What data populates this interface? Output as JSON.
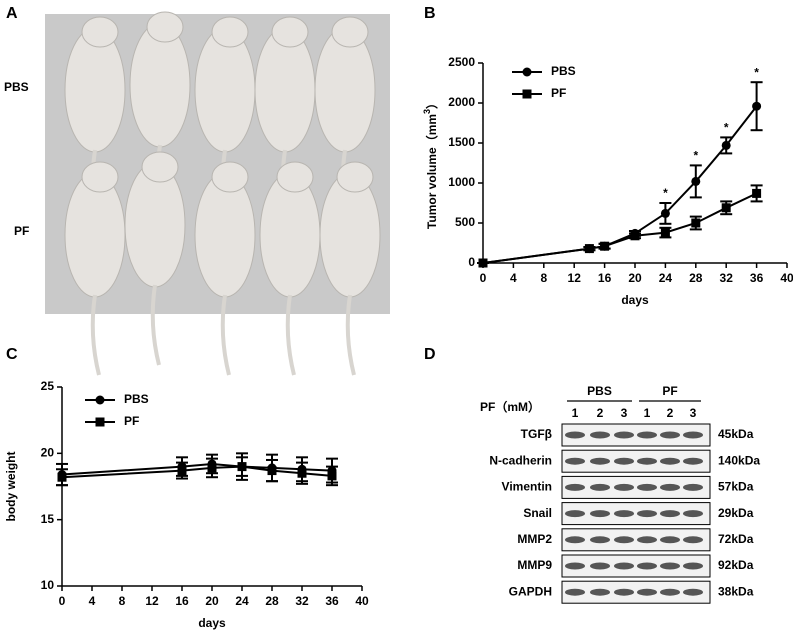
{
  "panel_labels": [
    "A",
    "B",
    "C",
    "D"
  ],
  "photo": {
    "row_labels": [
      "PBS",
      "PF"
    ]
  },
  "chart_data": [
    {
      "type": "line",
      "xlabel": "days",
      "ylabel": "Tumor volume（mm",
      "ylabel_sup": "3",
      "ylabel_end": "）",
      "x": [
        0,
        14,
        16,
        20,
        24,
        28,
        32,
        36
      ],
      "series": [
        {
          "name": "PBS",
          "color": "#000000",
          "marker": "circle",
          "values": [
            0,
            180,
            210,
            370,
            620,
            1020,
            1470,
            1960
          ],
          "errors": [
            0,
            20,
            30,
            30,
            130,
            200,
            100,
            300
          ]
        },
        {
          "name": "PF",
          "color": "#000000",
          "marker": "square",
          "values": [
            0,
            180,
            210,
            340,
            380,
            500,
            690,
            870
          ],
          "errors": [
            0,
            20,
            30,
            30,
            60,
            80,
            80,
            100
          ]
        }
      ],
      "xlim": [
        0,
        40
      ],
      "xticks": [
        0,
        4,
        8,
        12,
        16,
        20,
        24,
        28,
        32,
        36,
        40
      ],
      "ylim": [
        0,
        2500
      ],
      "yticks": [
        0,
        500,
        1000,
        1500,
        2000,
        2500
      ],
      "legend": "upper left",
      "annotations": [
        {
          "x": 24,
          "text": "*"
        },
        {
          "x": 28,
          "text": "*"
        },
        {
          "x": 32,
          "text": "*"
        },
        {
          "x": 36,
          "text": "*"
        }
      ]
    },
    {
      "type": "line",
      "xlabel": "days",
      "ylabel": "body weight",
      "x": [
        0,
        16,
        20,
        24,
        28,
        32,
        36
      ],
      "series": [
        {
          "name": "PBS",
          "color": "#000000",
          "marker": "circle",
          "values": [
            18.4,
            19.0,
            19.2,
            19.0,
            18.9,
            18.8,
            18.7
          ],
          "errors": [
            0.8,
            0.7,
            0.7,
            1.0,
            1.0,
            0.9,
            0.9
          ]
        },
        {
          "name": "PF",
          "color": "#000000",
          "marker": "square",
          "values": [
            18.2,
            18.7,
            18.9,
            19.0,
            18.7,
            18.5,
            18.3
          ],
          "errors": [
            0.6,
            0.6,
            0.7,
            0.7,
            0.8,
            0.8,
            0.7
          ]
        }
      ],
      "xlim": [
        0,
        40
      ],
      "xticks": [
        0,
        4,
        8,
        12,
        16,
        20,
        24,
        28,
        32,
        36,
        40
      ],
      "ylim": [
        10,
        25
      ],
      "yticks": [
        10,
        15,
        20,
        25
      ],
      "legend": "upper left"
    }
  ],
  "blot": {
    "header": "PF（mM）",
    "groups": [
      {
        "label": "PBS",
        "lanes": [
          "1",
          "2",
          "3"
        ]
      },
      {
        "label": "PF",
        "lanes": [
          "1",
          "2",
          "3"
        ]
      }
    ],
    "rows": [
      {
        "protein": "TGFβ",
        "size": "45kDa"
      },
      {
        "protein": "N-cadherin",
        "size": "140kDa"
      },
      {
        "protein": "Vimentin",
        "size": "57kDa"
      },
      {
        "protein": "Snail",
        "size": "29kDa"
      },
      {
        "protein": "MMP2",
        "size": "72kDa"
      },
      {
        "protein": "MMP9",
        "size": "92kDa"
      },
      {
        "protein": "GAPDH",
        "size": "38kDa"
      }
    ]
  }
}
